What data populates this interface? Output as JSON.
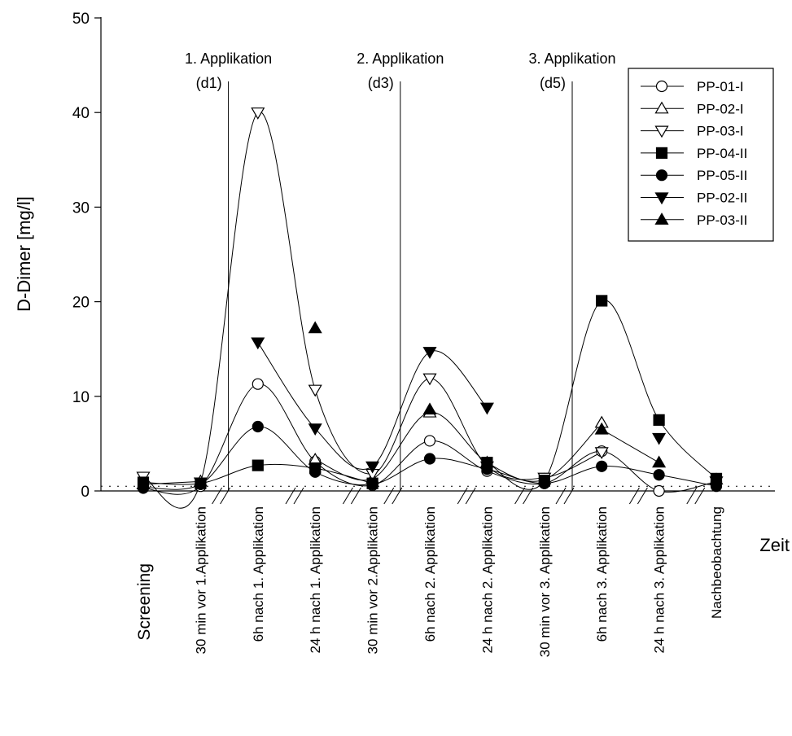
{
  "chart_data": {
    "type": "line",
    "ylabel": "D-Dimer [mg/l]",
    "xlabel": "Zeit",
    "ylim": [
      0,
      50
    ],
    "yticks": [
      "0",
      "10",
      "20",
      "30",
      "40",
      "50"
    ],
    "reference_line": 0.5,
    "categories": [
      "Screening",
      "30 min vor 1.Applikation",
      "6h nach 1. Applikation",
      "24 h nach 1. Applikation",
      "30 min vor 2.Applikation",
      "6h nach 2. Applikation",
      "24 h nach 2. Applikation",
      "30 min vor 3. Applikation",
      "6h nach 3. Applikation",
      "24 h nach 3. Applikation",
      "Nachbeobachtung"
    ],
    "applications": [
      {
        "label": "1. Applikation",
        "day": "(d1)"
      },
      {
        "label": "2. Applikation",
        "day": "(d3)"
      },
      {
        "label": "3. Applikation",
        "day": "(d5)"
      }
    ],
    "legend_position": "top-right",
    "series": [
      {
        "name": "PP-01-I",
        "marker": "circle-open",
        "values": [
          0.3,
          0.5,
          11.3,
          3.1,
          0.6,
          5.3,
          2.1,
          0.8,
          4.2,
          0.0,
          1.0
        ]
      },
      {
        "name": "PP-02-I",
        "marker": "triangle-up-open",
        "values": [
          0.7,
          1.0,
          null,
          3.3,
          1.3,
          8.3,
          3.0,
          1.2,
          7.2,
          null,
          1.2
        ]
      },
      {
        "name": "PP-03-I",
        "marker": "triangle-down-open",
        "values": [
          1.5,
          0.9,
          40.0,
          10.7,
          1.8,
          11.9,
          2.6,
          1.4,
          4.1,
          null,
          1.0
        ]
      },
      {
        "name": "PP-04-II",
        "marker": "square-filled",
        "values": [
          0.9,
          0.8,
          2.7,
          2.4,
          0.8,
          null,
          3.0,
          1.1,
          20.1,
          7.5,
          1.3
        ]
      },
      {
        "name": "PP-05-II",
        "marker": "circle-filled",
        "values": [
          0.4,
          0.7,
          6.8,
          2.0,
          0.7,
          3.4,
          2.3,
          0.8,
          2.6,
          1.7,
          0.5
        ]
      },
      {
        "name": "PP-02-II",
        "marker": "triangle-down-filled",
        "values": [
          null,
          null,
          15.7,
          6.6,
          2.6,
          14.7,
          8.8,
          null,
          null,
          5.6,
          null
        ]
      },
      {
        "name": "PP-03-II",
        "marker": "triangle-up-filled",
        "values": [
          null,
          null,
          null,
          17.2,
          null,
          8.6,
          null,
          null,
          6.5,
          3.0,
          null
        ]
      }
    ]
  }
}
